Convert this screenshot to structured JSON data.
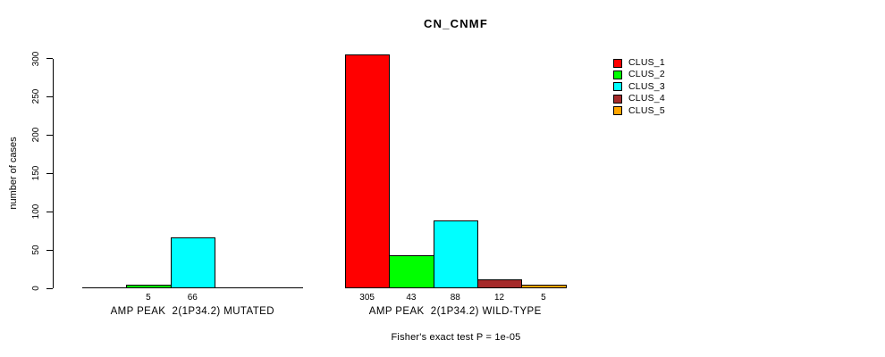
{
  "title": "CN_CNMF",
  "y_axis": {
    "label": "number of cases",
    "ticks": [
      0,
      50,
      100,
      150,
      200,
      250,
      300
    ]
  },
  "legend": {
    "items": [
      {
        "label": "CLUS_1",
        "color": "#FF0000"
      },
      {
        "label": "CLUS_2",
        "color": "#00FF00"
      },
      {
        "label": "CLUS_3",
        "color": "#00FFFF"
      },
      {
        "label": "CLUS_4",
        "color": "#A52A2A"
      },
      {
        "label": "CLUS_5",
        "color": "#FFA500"
      }
    ]
  },
  "chart_data": {
    "type": "bar",
    "title": "CN_CNMF",
    "xlabel": "",
    "ylabel": "number of cases",
    "ylim": [
      0,
      300
    ],
    "yticks": [
      0,
      50,
      100,
      150,
      200,
      250,
      300
    ],
    "grid": false,
    "legend_position": "right",
    "series_names": [
      "CLUS_1",
      "CLUS_2",
      "CLUS_3",
      "CLUS_4",
      "CLUS_5"
    ],
    "colors": [
      "#FF0000",
      "#00FF00",
      "#00FFFF",
      "#A52A2A",
      "#FFA500"
    ],
    "groups": [
      {
        "label": "AMP PEAK  2(1P34.2) MUTATED",
        "values": [
          0,
          5,
          66,
          0,
          0
        ],
        "bar_labels": [
          "",
          "5",
          "66",
          "",
          ""
        ]
      },
      {
        "label": "AMP PEAK  2(1P34.2) WILD-TYPE",
        "values": [
          305,
          43,
          88,
          12,
          5
        ],
        "bar_labels": [
          "305",
          "43",
          "88",
          "12",
          "5"
        ]
      }
    ],
    "annotation": "Fisher's exact test P = 1e-05"
  }
}
